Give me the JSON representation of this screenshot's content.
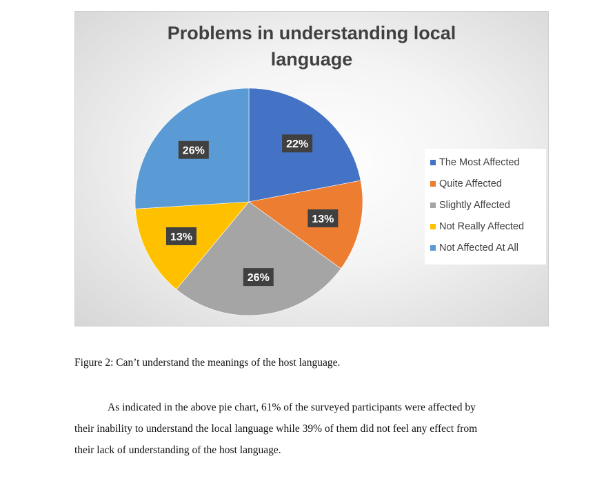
{
  "chart_data": {
    "type": "pie",
    "title": "Problems in understanding local language",
    "title_lines": [
      "Problems in understanding local",
      "language"
    ],
    "legend_position": "right",
    "slices": [
      {
        "label": "The Most Affected",
        "value": 22,
        "display": "22%",
        "color": "#4472C4"
      },
      {
        "label": "Quite Affected",
        "value": 13,
        "display": "13%",
        "color": "#ED7D31"
      },
      {
        "label": "Slightly Affected",
        "value": 26,
        "display": "26%",
        "color": "#A5A5A5"
      },
      {
        "label": "Not Really Affected",
        "value": 13,
        "display": "13%",
        "color": "#FFC000"
      },
      {
        "label": "Not Affected At All",
        "value": 26,
        "display": "26%",
        "color": "#5B9BD5"
      }
    ]
  },
  "caption": "Figure 2:  Can’t understand the meanings of the host language.",
  "paragraph_lines": [
    "As indicated in the above pie chart, 61% of the surveyed participants were affected by",
    "their inability to understand the local language while 39% of them did not feel any effect from",
    "their lack of understanding of the host language."
  ]
}
